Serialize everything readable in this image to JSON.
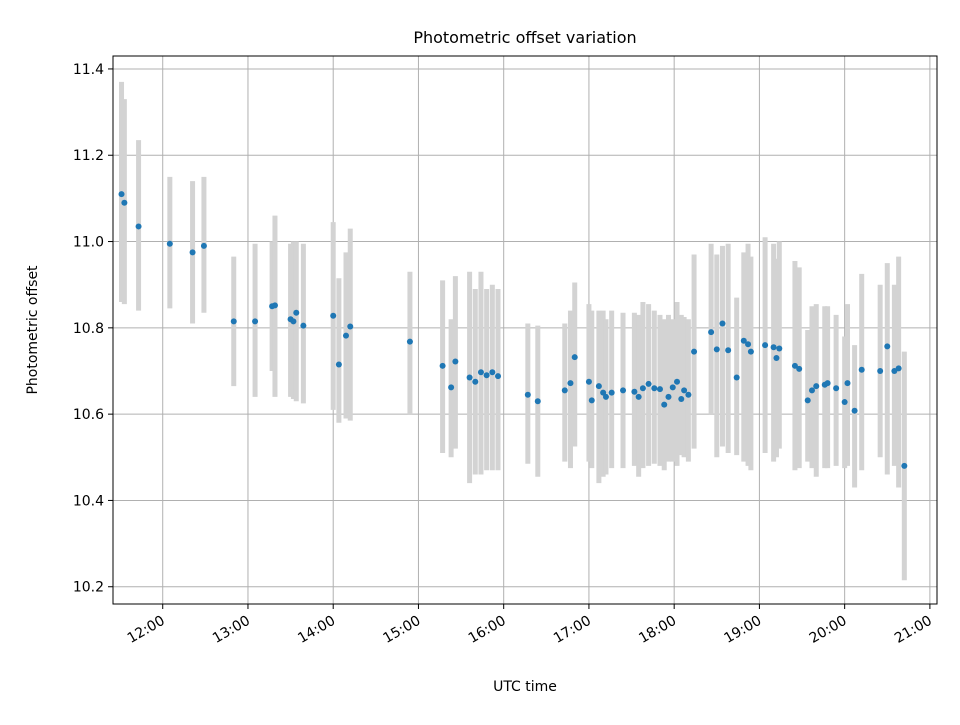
{
  "chart_data": {
    "type": "scatter",
    "title": "Photometric offset variation",
    "xlabel": "UTC time",
    "ylabel": "Photometric offset",
    "xlim": [
      "11:25",
      "21:05"
    ],
    "ylim": [
      10.16,
      11.43
    ],
    "xticks": [
      "12:00",
      "13:00",
      "14:00",
      "15:00",
      "16:00",
      "17:00",
      "18:00",
      "19:00",
      "20:00",
      "21:00"
    ],
    "yticks": [
      "10.2",
      "10.4",
      "10.6",
      "10.8",
      "11.0",
      "11.2",
      "11.4"
    ],
    "grid": true,
    "colors": {
      "point": "#1f77b4",
      "errorbar": "#d3d3d3",
      "grid": "#b0b0b0"
    },
    "series": [
      {
        "x": [
          "11:31",
          "11:33",
          "11:43",
          "12:05",
          "12:21",
          "12:29",
          "12:50",
          "13:05",
          "13:17",
          "13:19",
          "13:30",
          "13:32",
          "13:34",
          "13:39",
          "14:00",
          "14:04",
          "14:09",
          "14:12",
          "14:54",
          "15:17",
          "15:23",
          "15:26",
          "15:36",
          "15:40",
          "15:44",
          "15:48",
          "15:52",
          "15:56",
          "16:17",
          "16:24",
          "16:43",
          "16:47",
          "16:50",
          "17:00",
          "17:02",
          "17:07",
          "17:10",
          "17:12",
          "17:16",
          "17:24",
          "17:32",
          "17:35",
          "17:38",
          "17:42",
          "17:46",
          "17:50",
          "17:53",
          "17:56",
          "17:59",
          "18:02",
          "18:05",
          "18:07",
          "18:10",
          "18:14",
          "18:26",
          "18:30",
          "18:34",
          "18:38",
          "18:44",
          "18:49",
          "18:52",
          "18:54",
          "19:04",
          "19:10",
          "19:12",
          "19:14",
          "19:25",
          "19:28",
          "19:34",
          "19:37",
          "19:40",
          "19:46",
          "19:48",
          "19:54",
          "20:00",
          "20:02",
          "20:07",
          "20:12",
          "20:25",
          "20:30",
          "20:35",
          "20:38",
          "20:42"
        ],
        "y": [
          11.11,
          11.09,
          11.035,
          10.995,
          10.975,
          10.99,
          10.815,
          10.815,
          10.85,
          10.852,
          10.82,
          10.815,
          10.835,
          10.805,
          10.828,
          10.715,
          10.782,
          10.803,
          10.768,
          10.712,
          10.662,
          10.722,
          10.685,
          10.675,
          10.697,
          10.69,
          10.697,
          10.688,
          10.645,
          10.63,
          10.655,
          10.672,
          10.732,
          10.675,
          10.632,
          10.665,
          10.65,
          10.64,
          10.65,
          10.655,
          10.652,
          10.64,
          10.66,
          10.67,
          10.66,
          10.658,
          10.622,
          10.64,
          10.662,
          10.675,
          10.635,
          10.655,
          10.645,
          10.745,
          10.79,
          10.75,
          10.81,
          10.748,
          10.685,
          10.77,
          10.762,
          10.745,
          10.76,
          10.755,
          10.73,
          10.752,
          10.712,
          10.705,
          10.632,
          10.655,
          10.665,
          10.668,
          10.672,
          10.66,
          10.628,
          10.672,
          10.608,
          10.703,
          10.7,
          10.757,
          10.7,
          10.706,
          10.48
        ],
        "yerr_low": [
          10.86,
          10.855,
          10.84,
          10.845,
          10.81,
          10.835,
          10.665,
          10.64,
          10.7,
          10.64,
          10.64,
          10.635,
          10.63,
          10.625,
          10.61,
          10.58,
          10.59,
          10.585,
          10.6,
          10.51,
          10.5,
          10.52,
          10.44,
          10.46,
          10.46,
          10.47,
          10.47,
          10.47,
          10.485,
          10.455,
          10.49,
          10.475,
          10.525,
          10.49,
          10.475,
          10.44,
          10.455,
          10.46,
          10.475,
          10.475,
          10.48,
          10.455,
          10.475,
          10.48,
          10.485,
          10.48,
          10.47,
          10.49,
          10.49,
          10.48,
          10.505,
          10.5,
          10.49,
          10.52,
          10.6,
          10.5,
          10.525,
          10.51,
          10.505,
          10.49,
          10.48,
          10.47,
          10.51,
          10.49,
          10.5,
          10.52,
          10.47,
          10.475,
          10.49,
          10.475,
          10.455,
          10.475,
          10.475,
          10.48,
          10.475,
          10.48,
          10.43,
          10.47,
          10.5,
          10.46,
          10.48,
          10.43,
          10.215
        ],
        "yerr_high": [
          11.37,
          11.33,
          11.235,
          11.15,
          11.14,
          11.15,
          10.965,
          10.995,
          11.0,
          11.06,
          10.995,
          11.0,
          11.0,
          10.995,
          11.045,
          10.915,
          10.975,
          11.03,
          10.93,
          10.91,
          10.82,
          10.92,
          10.93,
          10.89,
          10.93,
          10.89,
          10.9,
          10.89,
          10.81,
          10.805,
          10.81,
          10.84,
          10.905,
          10.855,
          10.84,
          10.84,
          10.84,
          10.82,
          10.84,
          10.835,
          10.835,
          10.83,
          10.86,
          10.855,
          10.84,
          10.83,
          10.82,
          10.83,
          10.82,
          10.86,
          10.83,
          10.825,
          10.82,
          10.97,
          10.995,
          10.97,
          10.99,
          10.995,
          10.87,
          10.975,
          10.995,
          10.965,
          11.01,
          10.995,
          10.96,
          11.0,
          10.955,
          10.94,
          10.795,
          10.85,
          10.855,
          10.85,
          10.85,
          10.83,
          10.78,
          10.855,
          10.76,
          10.925,
          10.9,
          10.95,
          10.9,
          10.965,
          10.745
        ]
      }
    ]
  }
}
